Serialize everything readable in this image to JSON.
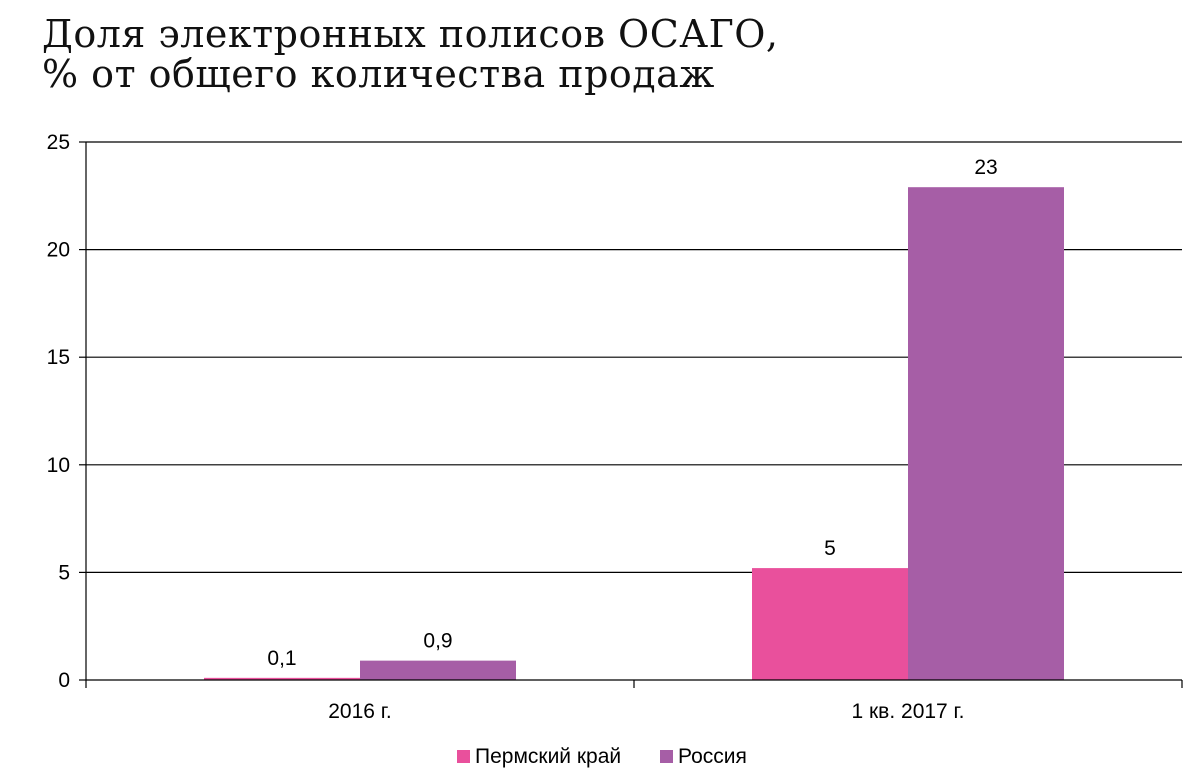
{
  "chart_data": {
    "type": "bar",
    "title_lines": [
      "Доля электронных полисов ОСАГО,",
      "% от общего количества продаж"
    ],
    "categories": [
      "2016 г.",
      "1 кв. 2017 г."
    ],
    "series": [
      {
        "name": "Пермский край",
        "values": [
          0.1,
          5.2
        ],
        "labels": [
          "0,1",
          "5"
        ],
        "color": "#e9509c"
      },
      {
        "name": "Россия",
        "values": [
          0.9,
          22.9
        ],
        "labels": [
          "0,9",
          "23"
        ],
        "color": "#a65ea6"
      }
    ],
    "y_ticks": [
      0,
      5,
      10,
      15,
      20,
      25
    ],
    "ylim": [
      0,
      25
    ],
    "grid": true,
    "legend_position": "bottom-center",
    "xlabel": "",
    "ylabel": ""
  }
}
